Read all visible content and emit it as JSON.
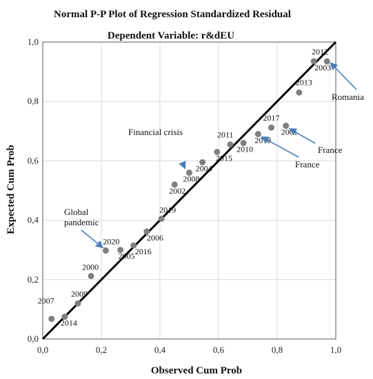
{
  "chart_data": {
    "type": "scatter",
    "title": "Normal P-P Plot of Regression Standardized Residual",
    "subtitle": "Dependent Variable: r&dEU",
    "xlabel": "Observed Cum Prob",
    "ylabel": "Expected Cum Prob",
    "xlim": [
      0,
      1
    ],
    "ylim": [
      0,
      1
    ],
    "xticks": [
      "0,0",
      "0,2",
      "0,4",
      "0,6",
      "0,8",
      "1,0"
    ],
    "yticks": [
      "0,0",
      "0,2",
      "0,4",
      "0,6",
      "0,8",
      "1,0"
    ],
    "tick_values": [
      0,
      0.2,
      0.4,
      0.6,
      0.8,
      1.0
    ],
    "grid": true,
    "reference_line": [
      [
        0,
        0
      ],
      [
        1,
        1
      ]
    ],
    "point_color": "#7f7f7f",
    "line_color": "#000000",
    "arrow_color": "#4a7ebb",
    "points": [
      {
        "label": "2007",
        "x": 0.03,
        "y": 0.068
      },
      {
        "label": "2014",
        "x": 0.075,
        "y": 0.075
      },
      {
        "label": "2009",
        "x": 0.12,
        "y": 0.12
      },
      {
        "label": "2000",
        "x": 0.165,
        "y": 0.212
      },
      {
        "label": "2020",
        "x": 0.215,
        "y": 0.298
      },
      {
        "label": "2005",
        "x": 0.265,
        "y": 0.3
      },
      {
        "label": "2016",
        "x": 0.31,
        "y": 0.315
      },
      {
        "label": "2006",
        "x": 0.355,
        "y": 0.362
      },
      {
        "label": "2019",
        "x": 0.405,
        "y": 0.405
      },
      {
        "label": "2002",
        "x": 0.45,
        "y": 0.52
      },
      {
        "label": "2008",
        "x": 0.5,
        "y": 0.56
      },
      {
        "label": "2004",
        "x": 0.545,
        "y": 0.595
      },
      {
        "label": "2015",
        "x": 0.595,
        "y": 0.63
      },
      {
        "label": "2011",
        "x": 0.64,
        "y": 0.655
      },
      {
        "label": "2010",
        "x": 0.685,
        "y": 0.66
      },
      {
        "label": "2018",
        "x": 0.735,
        "y": 0.69
      },
      {
        "label": "2017",
        "x": 0.78,
        "y": 0.712
      },
      {
        "label": "2001",
        "x": 0.83,
        "y": 0.718
      },
      {
        "label": "2013",
        "x": 0.875,
        "y": 0.83
      },
      {
        "label": "2012",
        "x": 0.925,
        "y": 0.935
      },
      {
        "label": "2003",
        "x": 0.97,
        "y": 0.935
      }
    ],
    "annotations": [
      {
        "text": "Financial crisis",
        "target": "2008"
      },
      {
        "text": "Global pandemic",
        "lines": [
          "Global",
          "pandemic"
        ],
        "target": "2020"
      },
      {
        "text": "Romania",
        "target": "2003"
      },
      {
        "text": "France",
        "target": "2001"
      },
      {
        "text": "France",
        "target": "2018"
      }
    ]
  }
}
